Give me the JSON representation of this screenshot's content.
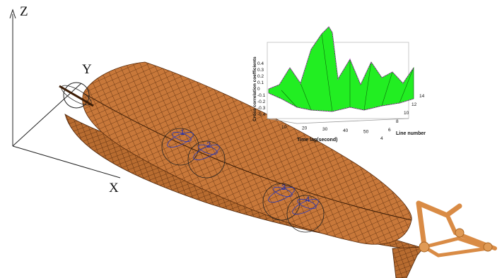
{
  "axes": {
    "z_label": "Z",
    "y_label": "Y",
    "x_label": "X"
  },
  "sensors": [
    "1",
    "2",
    "3",
    "4"
  ],
  "inset_plot": {
    "zlabel": "Cross correlation coefficients",
    "xlabel": "Time lag(second)",
    "ylabel": "Line number",
    "z_ticks": [
      "0.4",
      "0.3",
      "0.2",
      "0.1",
      "0",
      "-0.1",
      "-0.2",
      "-0.3",
      "-0.4"
    ],
    "x_ticks": [
      "10",
      "20",
      "30",
      "40",
      "50"
    ],
    "y_ticks": [
      "4",
      "6",
      "8",
      "10",
      "12",
      "14"
    ]
  },
  "colors": {
    "hull": "#c8783a",
    "grid": "#5a2c0c",
    "surface": "#22ee22",
    "crane": "#e09a55"
  }
}
